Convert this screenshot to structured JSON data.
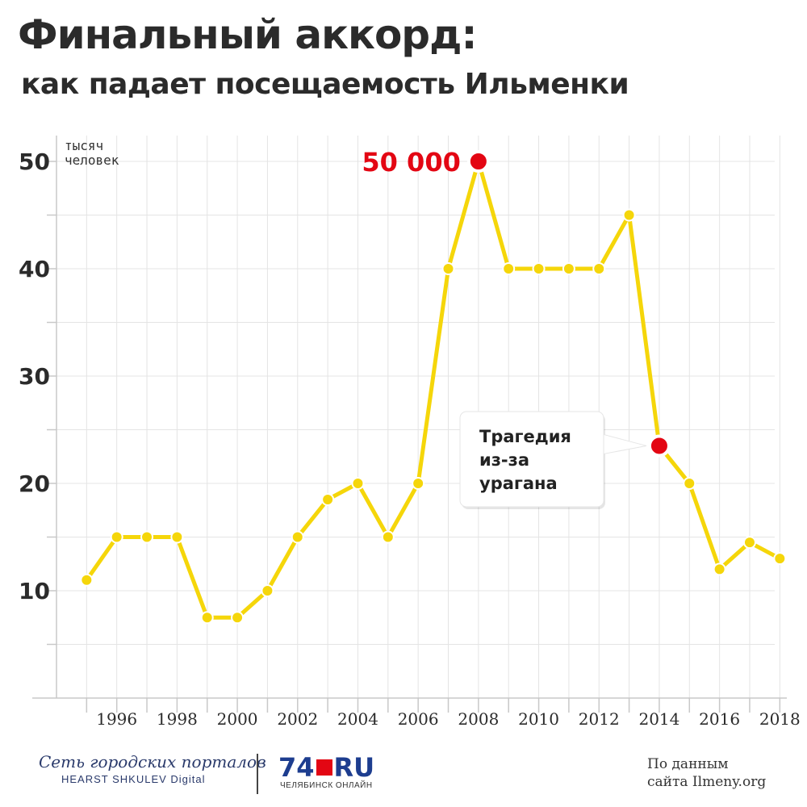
{
  "header": {
    "title": "Финальный аккорд:",
    "subtitle": "как падает посещаемость Ильменки"
  },
  "chart_data": {
    "type": "line",
    "title": "Финальный аккорд:",
    "subtitle": "как падает посещаемость Ильменки",
    "ylabel_lines": [
      "тысяч",
      "человек"
    ],
    "yticks": [
      "10",
      "20",
      "30",
      "40",
      "50"
    ],
    "ylim": [
      0,
      52
    ],
    "xticks": [
      "1996",
      "1998",
      "2000",
      "2002",
      "2004",
      "2006",
      "2008",
      "2010",
      "2012",
      "2014",
      "2016",
      "2018"
    ],
    "xlim": [
      1994,
      2018.5
    ],
    "grid": true,
    "series": [
      {
        "name": "",
        "color": "#f5d60a",
        "points": [
          {
            "x": 1995,
            "y": 11
          },
          {
            "x": 1996,
            "y": 15
          },
          {
            "x": 1997,
            "y": 15
          },
          {
            "x": 1998,
            "y": 15
          },
          {
            "x": 1999,
            "y": 7.5
          },
          {
            "x": 2000,
            "y": 7.5
          },
          {
            "x": 2001,
            "y": 10
          },
          {
            "x": 2002,
            "y": 15
          },
          {
            "x": 2003,
            "y": 18.5
          },
          {
            "x": 2004,
            "y": 20
          },
          {
            "x": 2005,
            "y": 15
          },
          {
            "x": 2006,
            "y": 20
          },
          {
            "x": 2007,
            "y": 40
          },
          {
            "x": 2008,
            "y": 50
          },
          {
            "x": 2009,
            "y": 40
          },
          {
            "x": 2010,
            "y": 40
          },
          {
            "x": 2011,
            "y": 40
          },
          {
            "x": 2012,
            "y": 40
          },
          {
            "x": 2013,
            "y": 45
          },
          {
            "x": 2014,
            "y": 23.5
          },
          {
            "x": 2015,
            "y": 20
          },
          {
            "x": 2016,
            "y": 12
          },
          {
            "x": 2017,
            "y": 14.5
          },
          {
            "x": 2018,
            "y": 13
          }
        ]
      }
    ],
    "annotations": [
      {
        "x": 2008,
        "y": 50,
        "label": "50 000",
        "color": "#e30613"
      },
      {
        "x": 2014,
        "y": 23.5,
        "label_lines": [
          "Трагедия",
          "из-за",
          "урагана"
        ],
        "color": "#e30613"
      }
    ]
  },
  "footer": {
    "publisher": "Сеть городских порталов",
    "publisher_sub": "HEARST SHKULEV Digital",
    "logo_number": "74",
    "logo_domain": "RU",
    "logo_sub": "ЧЕЛЯБИНСК ОНЛАЙН",
    "source_lines": [
      "По данным",
      "сайта Ilmeny.org"
    ]
  }
}
